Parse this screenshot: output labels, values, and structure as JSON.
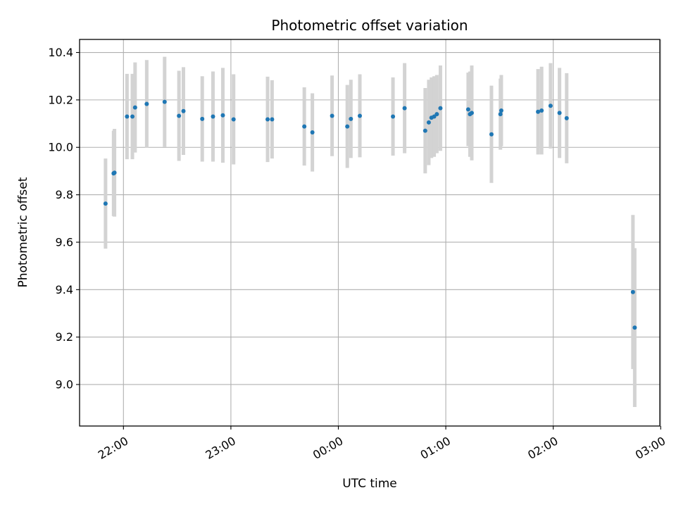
{
  "chart_data": {
    "type": "scatter",
    "title": "Photometric offset variation",
    "xlabel": "UTC time",
    "ylabel": "Photometric offset",
    "x_ticks": [
      "22:00",
      "23:00",
      "00:00",
      "01:00",
      "02:00",
      "03:00"
    ],
    "x_tick_minutes": [
      0,
      60,
      120,
      180,
      240,
      300
    ],
    "xlim_minutes": [
      -24.5,
      299.5
    ],
    "y_ticks": [
      "9.0",
      "9.2",
      "9.4",
      "9.6",
      "9.8",
      "10.0",
      "10.2",
      "10.4"
    ],
    "ylim": [
      8.825,
      10.455
    ],
    "grid": true,
    "colors": {
      "point": "#1f77b4",
      "errorbar": "#d3d3d3",
      "grid": "#b0b0b0"
    },
    "points": [
      {
        "t": -10,
        "y": 9.763,
        "err": 0.19
      },
      {
        "t": -5.5,
        "y": 9.89,
        "err": 0.18
      },
      {
        "t": -5,
        "y": 9.893,
        "err": 0.185
      },
      {
        "t": 2,
        "y": 10.13,
        "err": 0.18
      },
      {
        "t": 5,
        "y": 10.13,
        "err": 0.18
      },
      {
        "t": 6.5,
        "y": 10.168,
        "err": 0.19
      },
      {
        "t": 13,
        "y": 10.183,
        "err": 0.185
      },
      {
        "t": 23,
        "y": 10.192,
        "err": 0.19
      },
      {
        "t": 31,
        "y": 10.133,
        "err": 0.19
      },
      {
        "t": 33.5,
        "y": 10.153,
        "err": 0.185
      },
      {
        "t": 44,
        "y": 10.12,
        "err": 0.18
      },
      {
        "t": 50,
        "y": 10.13,
        "err": 0.19
      },
      {
        "t": 55.5,
        "y": 10.135,
        "err": 0.2
      },
      {
        "t": 61.5,
        "y": 10.118,
        "err": 0.19
      },
      {
        "t": 80.5,
        "y": 10.118,
        "err": 0.18
      },
      {
        "t": 83,
        "y": 10.118,
        "err": 0.165
      },
      {
        "t": 101,
        "y": 10.088,
        "err": 0.165
      },
      {
        "t": 105.5,
        "y": 10.063,
        "err": 0.165
      },
      {
        "t": 116.5,
        "y": 10.133,
        "err": 0.17
      },
      {
        "t": 125,
        "y": 10.088,
        "err": 0.175
      },
      {
        "t": 127,
        "y": 10.12,
        "err": 0.165
      },
      {
        "t": 132,
        "y": 10.133,
        "err": 0.175
      },
      {
        "t": 150.5,
        "y": 10.13,
        "err": 0.165
      },
      {
        "t": 157,
        "y": 10.165,
        "err": 0.19
      },
      {
        "t": 168.5,
        "y": 10.07,
        "err": 0.18
      },
      {
        "t": 170.5,
        "y": 10.105,
        "err": 0.18
      },
      {
        "t": 172,
        "y": 10.125,
        "err": 0.17
      },
      {
        "t": 173.5,
        "y": 10.13,
        "err": 0.17
      },
      {
        "t": 175,
        "y": 10.14,
        "err": 0.165
      },
      {
        "t": 177,
        "y": 10.165,
        "err": 0.18
      },
      {
        "t": 192.5,
        "y": 10.16,
        "err": 0.155
      },
      {
        "t": 193.5,
        "y": 10.14,
        "err": 0.18
      },
      {
        "t": 194.5,
        "y": 10.145,
        "err": 0.2
      },
      {
        "t": 205.5,
        "y": 10.055,
        "err": 0.205
      },
      {
        "t": 210.5,
        "y": 10.14,
        "err": 0.15
      },
      {
        "t": 211,
        "y": 10.155,
        "err": 0.15
      },
      {
        "t": 231.5,
        "y": 10.15,
        "err": 0.18
      },
      {
        "t": 233.5,
        "y": 10.155,
        "err": 0.185
      },
      {
        "t": 238.5,
        "y": 10.175,
        "err": 0.18
      },
      {
        "t": 243.5,
        "y": 10.145,
        "err": 0.19
      },
      {
        "t": 247.5,
        "y": 10.123,
        "err": 0.19
      },
      {
        "t": 284.5,
        "y": 9.39,
        "err": 0.325
      },
      {
        "t": 285.5,
        "y": 9.24,
        "err": 0.335
      }
    ]
  }
}
